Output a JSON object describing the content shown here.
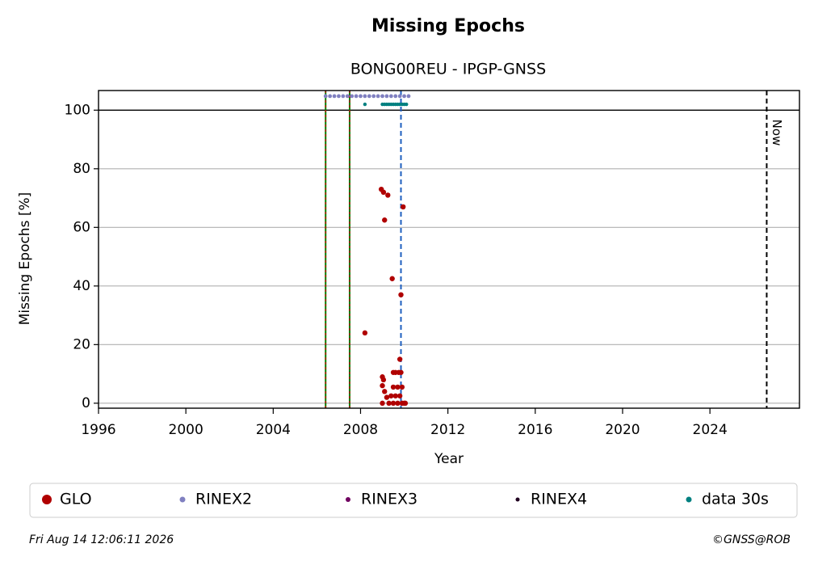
{
  "chart_data": {
    "type": "scatter",
    "title": "Missing Epochs",
    "subtitle": "BONG00REU - IPGP-GNSS",
    "x_label": "Year",
    "y_label": "Missing Epochs [%]",
    "xlim": [
      1996,
      2028.1
    ],
    "ylim": [
      -1.7,
      106.7
    ],
    "xticks": [
      1996,
      2000,
      2004,
      2008,
      2012,
      2016,
      2020,
      2024
    ],
    "yticks": [
      0,
      20,
      40,
      60,
      80,
      100
    ],
    "grid": "y",
    "hline": {
      "y": 100,
      "color": "#000000"
    },
    "vlines": [
      {
        "x": 2006.4,
        "color": "#008000",
        "dash_color": "#cc0000"
      },
      {
        "x": 2007.5,
        "color": "#008000",
        "dash_color": "#cc0000"
      },
      {
        "x": 2009.85,
        "color": "#1f5fbf",
        "dash_color": "#ffffff"
      },
      {
        "x": 2026.6,
        "color": "#000000",
        "dash_color": "#ffffff",
        "label": "Now"
      }
    ],
    "series": [
      {
        "name": "GLO",
        "color": "#b00000",
        "x": [
          2008.2,
          2008.95,
          2009.05,
          2009.1,
          2009.25,
          2009.45,
          2009.8,
          2009.85,
          2009.95,
          2009.0,
          2009.05,
          2009.0,
          2009.1,
          2009.2,
          2009.0,
          2009.3,
          2009.5,
          2009.6,
          2009.75,
          2009.85,
          2009.5,
          2009.7,
          2009.9,
          2009.4,
          2009.6,
          2009.8,
          2009.5,
          2009.7,
          2009.9,
          2010.0,
          2010.05
        ],
        "y": [
          24,
          73,
          72,
          62.5,
          71,
          42.5,
          15,
          37,
          67,
          9,
          8,
          6,
          4,
          2,
          0,
          0,
          10.5,
          10.5,
          10.5,
          10.5,
          5.5,
          5.5,
          5.5,
          2.5,
          2.5,
          2.5,
          0,
          0,
          0,
          0,
          0
        ]
      },
      {
        "name": "RINEX2",
        "color": "#8080c0",
        "x": [
          2006.4,
          2006.6,
          2006.8,
          2007.0,
          2007.2,
          2007.4,
          2007.6,
          2007.8,
          2008.0,
          2008.2,
          2008.4,
          2008.6,
          2008.8,
          2009.0,
          2009.2,
          2009.4,
          2009.6,
          2009.8,
          2010.0,
          2010.2
        ],
        "y": [
          104.8,
          104.8,
          104.8,
          104.8,
          104.8,
          104.8,
          104.8,
          104.8,
          104.8,
          104.8,
          104.8,
          104.8,
          104.8,
          104.8,
          104.8,
          104.8,
          104.8,
          104.8,
          104.8,
          104.8
        ]
      },
      {
        "name": "RINEX3",
        "color": "#700060",
        "x": [],
        "y": []
      },
      {
        "name": "RINEX4",
        "color": "#200020",
        "x": [],
        "y": []
      },
      {
        "name": "data 30s",
        "color": "#008080",
        "x": [
          2008.2,
          2009.0,
          2009.1,
          2009.2,
          2009.3,
          2009.4,
          2009.5,
          2009.6,
          2009.7,
          2009.8,
          2009.9,
          2010.0,
          2010.1
        ],
        "y": [
          102,
          102,
          102,
          102,
          102,
          102,
          102,
          102,
          102,
          102,
          102,
          102,
          102
        ]
      }
    ],
    "footer_left": "Fri Aug 14 12:06:11 2026",
    "footer_right": "©GNSS@ROB"
  }
}
